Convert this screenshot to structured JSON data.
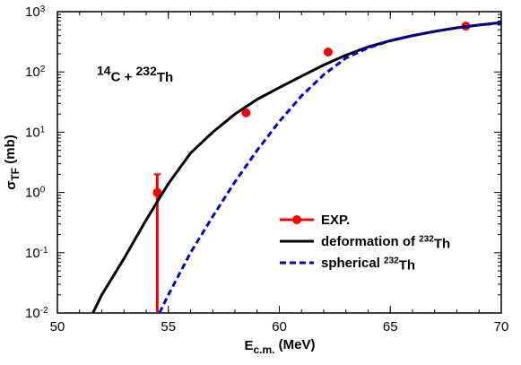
{
  "chart_data": {
    "type": "line",
    "annotation": [
      {
        "sup": "14"
      },
      {
        "text": "C + "
      },
      {
        "sup": "232"
      },
      {
        "text": "Th"
      }
    ],
    "xlabel": [
      {
        "text": "E"
      },
      {
        "sub": "c.m."
      },
      {
        "text": " (MeV)"
      }
    ],
    "ylabel": [
      {
        "text": "σ"
      },
      {
        "sub": "TF"
      },
      {
        "text": " (mb)"
      }
    ],
    "xlim": [
      50,
      70
    ],
    "xticks": [
      50,
      55,
      60,
      65,
      70
    ],
    "ylim": [
      0.01,
      1000
    ],
    "yscale": "log",
    "yticks": [
      {
        "value": 0.01,
        "label": "10",
        "sup": "-2"
      },
      {
        "value": 0.1,
        "label": "10",
        "sup": "-1"
      },
      {
        "value": 1,
        "label": "10",
        "sup": "0"
      },
      {
        "value": 10,
        "label": "10",
        "sup": "1"
      },
      {
        "value": 100,
        "label": "10",
        "sup": "2"
      },
      {
        "value": 1000,
        "label": "10",
        "sup": "3"
      }
    ],
    "legend": "lower right",
    "series": [
      {
        "name": [
          {
            "text": "EXP."
          }
        ],
        "kind": "errorbar",
        "color": "#ff0000",
        "x": [
          54.5,
          58.5,
          62.2,
          68.4
        ],
        "values": [
          1,
          21,
          214,
          575
        ],
        "err_low": [
          0.99,
          null,
          null,
          null
        ],
        "err_high": [
          1,
          null,
          null,
          null
        ]
      },
      {
        "name": [
          {
            "text": " deformation of "
          },
          {
            "sup": "232"
          },
          {
            "text": "Th"
          }
        ],
        "kind": "solid",
        "color": "#000000",
        "x": [
          51.6,
          52,
          53,
          54,
          55,
          56,
          57,
          58,
          59,
          60,
          61,
          62,
          63,
          64,
          65,
          66,
          67,
          68,
          69,
          70
        ],
        "values": [
          0.01,
          0.02,
          0.08,
          0.35,
          1.4,
          4.5,
          10,
          20,
          35,
          55,
          85,
          130,
          190,
          260,
          330,
          400,
          470,
          540,
          600,
          660
        ]
      },
      {
        "name": [
          {
            "text": "spherical "
          },
          {
            "sup": "232"
          },
          {
            "text": "Th"
          }
        ],
        "kind": "dashed",
        "color": "#0000dd",
        "x": [
          54.6,
          55,
          56,
          57,
          58,
          59,
          60,
          61,
          62,
          63,
          64,
          65,
          66,
          67,
          68,
          69,
          70
        ],
        "values": [
          0.01,
          0.02,
          0.1,
          0.4,
          1.5,
          5,
          15,
          40,
          90,
          170,
          250,
          330,
          400,
          470,
          540,
          600,
          650
        ]
      }
    ]
  }
}
